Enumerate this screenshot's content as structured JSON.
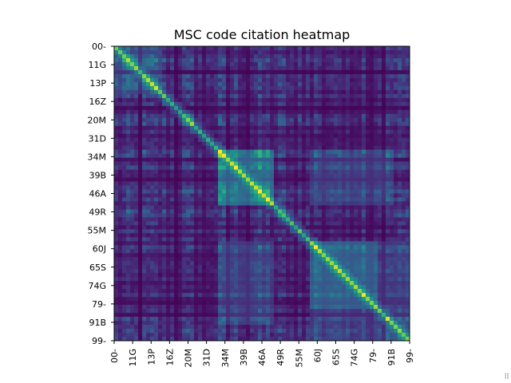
{
  "chart_data": {
    "type": "heatmap",
    "title": "MSC code citation heatmap",
    "xlabel": "",
    "ylabel": "",
    "colormap": "viridis",
    "tick_labels": [
      "00-",
      "11G",
      "13P",
      "16Z",
      "20M",
      "31D",
      "34M",
      "39B",
      "46A",
      "49R",
      "55M",
      "60J",
      "65S",
      "74G",
      "79-",
      "91B",
      "99-"
    ],
    "grid": false,
    "legend": "none",
    "description_of_values": "Square matrix of citation intensities between MSC codes; brightest values lie along the diagonal with blocks of elevated values around 34M-46A and 60J-79-."
  },
  "corner_glyph": "⠿"
}
